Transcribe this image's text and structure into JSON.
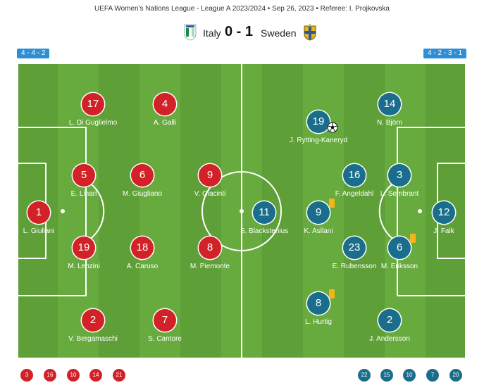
{
  "header": {
    "competition": "UEFA Women's Nations League - League A 2023/2024 • Sep 26, 2023 • Referee: I. Projkovska"
  },
  "match": {
    "home_team": "Italy",
    "away_team": "Sweden",
    "score": "0 - 1",
    "home_formation": "4 - 4 - 2",
    "away_formation": "4 - 2 - 3 - 1"
  },
  "colors": {
    "home": "#d32128",
    "away": "#1a6e8c",
    "pitch": "#67ab3f",
    "formation_badge": "#2f8fd6",
    "yellow_card": "#f2b51c"
  },
  "home_players": [
    {
      "number": "1",
      "name": "L. Giuliani"
    },
    {
      "number": "5",
      "name": "E. Linari"
    },
    {
      "number": "19",
      "name": "M. Lenzini"
    },
    {
      "number": "17",
      "name": "L. Di Guglielmo"
    },
    {
      "number": "2",
      "name": "V. Bergamaschi"
    },
    {
      "number": "6",
      "name": "M. Giugliano"
    },
    {
      "number": "18",
      "name": "A. Caruso"
    },
    {
      "number": "4",
      "name": "A. Galli"
    },
    {
      "number": "7",
      "name": "S. Cantore"
    },
    {
      "number": "9",
      "name": "V. Giacinti"
    },
    {
      "number": "8",
      "name": "M. Piemonte"
    }
  ],
  "away_players": [
    {
      "number": "12",
      "name": "J. Falk"
    },
    {
      "number": "3",
      "name": "L. Sembrant"
    },
    {
      "number": "6",
      "name": "M. Eriksson",
      "card": "yellow"
    },
    {
      "number": "14",
      "name": "N. Björn"
    },
    {
      "number": "2",
      "name": "J. Andersson"
    },
    {
      "number": "16",
      "name": "F. Angeldahl"
    },
    {
      "number": "23",
      "name": "E. Rubensson"
    },
    {
      "number": "19",
      "name": "J. Rytting-Kaneryd",
      "goal": true
    },
    {
      "number": "9",
      "name": "K. Asllani",
      "card": "yellow"
    },
    {
      "number": "8",
      "name": "L. Hurtig",
      "card": "yellow"
    },
    {
      "number": "11",
      "name": "S. Blackstenius"
    }
  ],
  "home_subs": [
    "3",
    "16",
    "10",
    "14",
    "21"
  ],
  "away_subs": [
    "22",
    "15",
    "10",
    "7",
    "20"
  ],
  "icons": {
    "home_crest": "italy-crest-icon",
    "away_crest": "sweden-crest-icon",
    "goal": "soccer-ball-icon",
    "card": "yellow-card-icon"
  }
}
